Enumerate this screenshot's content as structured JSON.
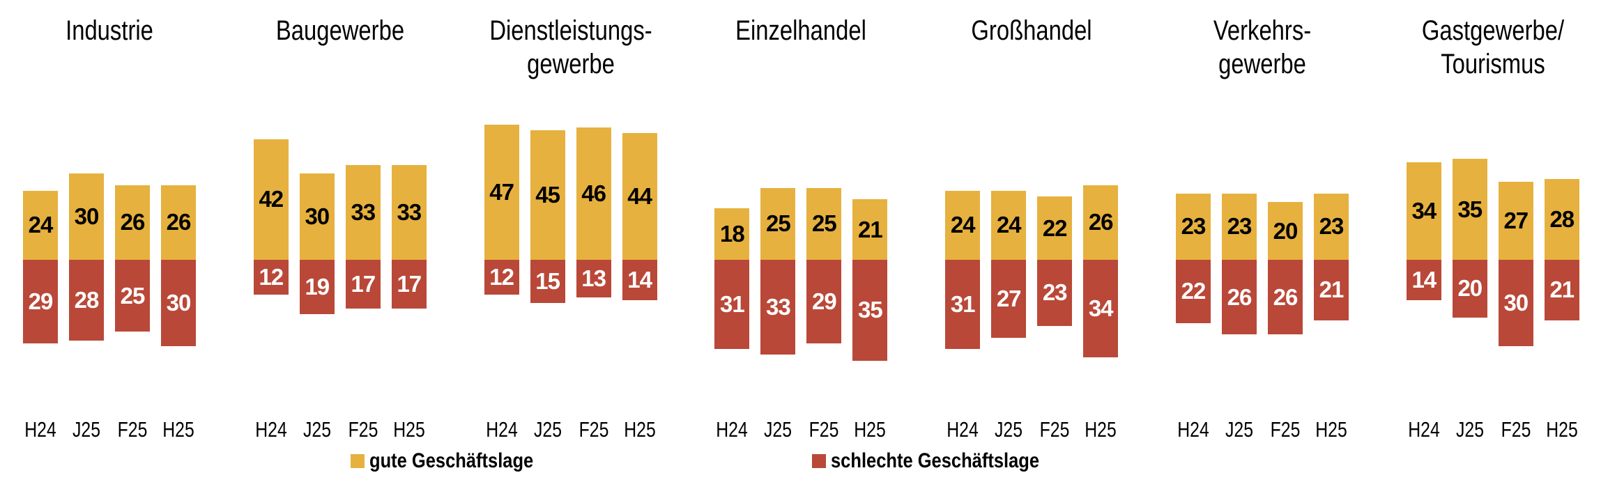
{
  "chart_data": {
    "type": "bar",
    "subtype": "diverging-stacked-columns",
    "title": "",
    "categories": [
      "H24",
      "J25",
      "F25",
      "H25"
    ],
    "groups": [
      {
        "name": "industrie",
        "title": "Industrie",
        "gute": [
          24,
          30,
          26,
          26
        ],
        "schlechte": [
          29,
          28,
          25,
          30
        ]
      },
      {
        "name": "baugewerbe",
        "title": "Baugewerbe",
        "gute": [
          42,
          30,
          33,
          33
        ],
        "schlechte": [
          12,
          19,
          17,
          17
        ]
      },
      {
        "name": "dienstleistungsgewerbe",
        "title": "Dienstleistungs-\ngewerbe",
        "gute": [
          47,
          45,
          46,
          44
        ],
        "schlechte": [
          12,
          15,
          13,
          14
        ]
      },
      {
        "name": "einzelhandel",
        "title": "Einzelhandel",
        "gute": [
          18,
          25,
          25,
          21
        ],
        "schlechte": [
          31,
          33,
          29,
          35
        ]
      },
      {
        "name": "grosshandel",
        "title": "Großhandel",
        "gute": [
          24,
          24,
          22,
          26
        ],
        "schlechte": [
          31,
          27,
          23,
          34
        ]
      },
      {
        "name": "verkehrsgewerbe",
        "title": "Verkehrs-\ngewerbe",
        "gute": [
          23,
          23,
          20,
          23
        ],
        "schlechte": [
          22,
          26,
          26,
          21
        ]
      },
      {
        "name": "gastgewerbe-tourismus",
        "title": "Gastgewerbe/\nTourismus",
        "gute": [
          34,
          35,
          27,
          28
        ],
        "schlechte": [
          14,
          20,
          30,
          21
        ]
      }
    ],
    "legend": {
      "good": "gute Geschäftslage",
      "bad": "schlechte Geschäftslage",
      "position": "bottom"
    },
    "colors": {
      "good": "#E6B13E",
      "bad": "#B94838"
    },
    "value_labels": true,
    "axes": "hidden",
    "baseline_shared": true
  }
}
